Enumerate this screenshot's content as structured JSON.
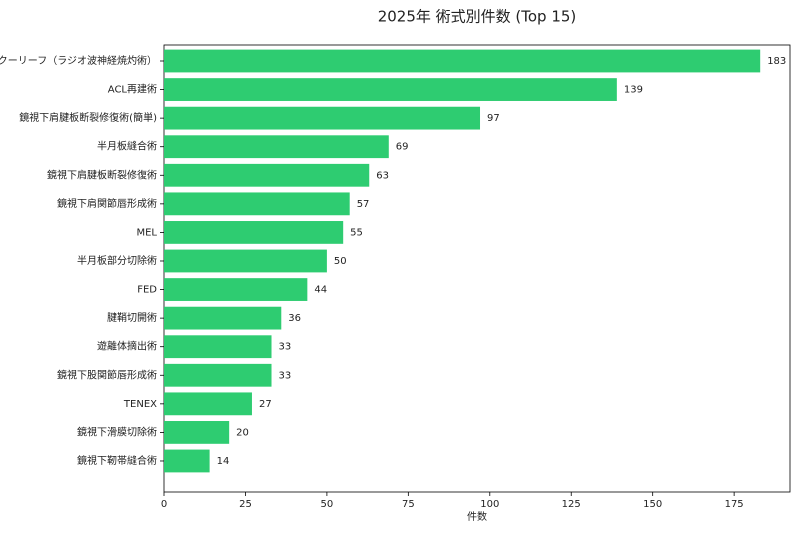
{
  "chart_data": {
    "type": "barh",
    "title": "2025年 術式別件数 (Top 15)",
    "x_label": "件数",
    "categories": [
      "クーリーフ（ラジオ波神経焼灼術）",
      "ACL再建術",
      "鏡視下肩腱板断裂修復術(簡単)",
      "半月板縫合術",
      "鏡視下肩腱板断裂修復術",
      "鏡視下肩関節唇形成術",
      "MEL",
      "半月板部分切除術",
      "FED",
      "腱鞘切開術",
      "遊離体摘出術",
      "鏡視下股関節唇形成術",
      "TENEX",
      "鏡視下滑膜切除術",
      "鏡視下靭帯縫合術"
    ],
    "values": [
      183,
      139,
      97,
      69,
      63,
      57,
      55,
      50,
      44,
      36,
      33,
      33,
      27,
      20,
      14
    ],
    "color": "#2ecc71",
    "xlim": [
      0,
      192.15
    ],
    "xticks": [
      0,
      25,
      50,
      75,
      100,
      125,
      150,
      175
    ]
  }
}
